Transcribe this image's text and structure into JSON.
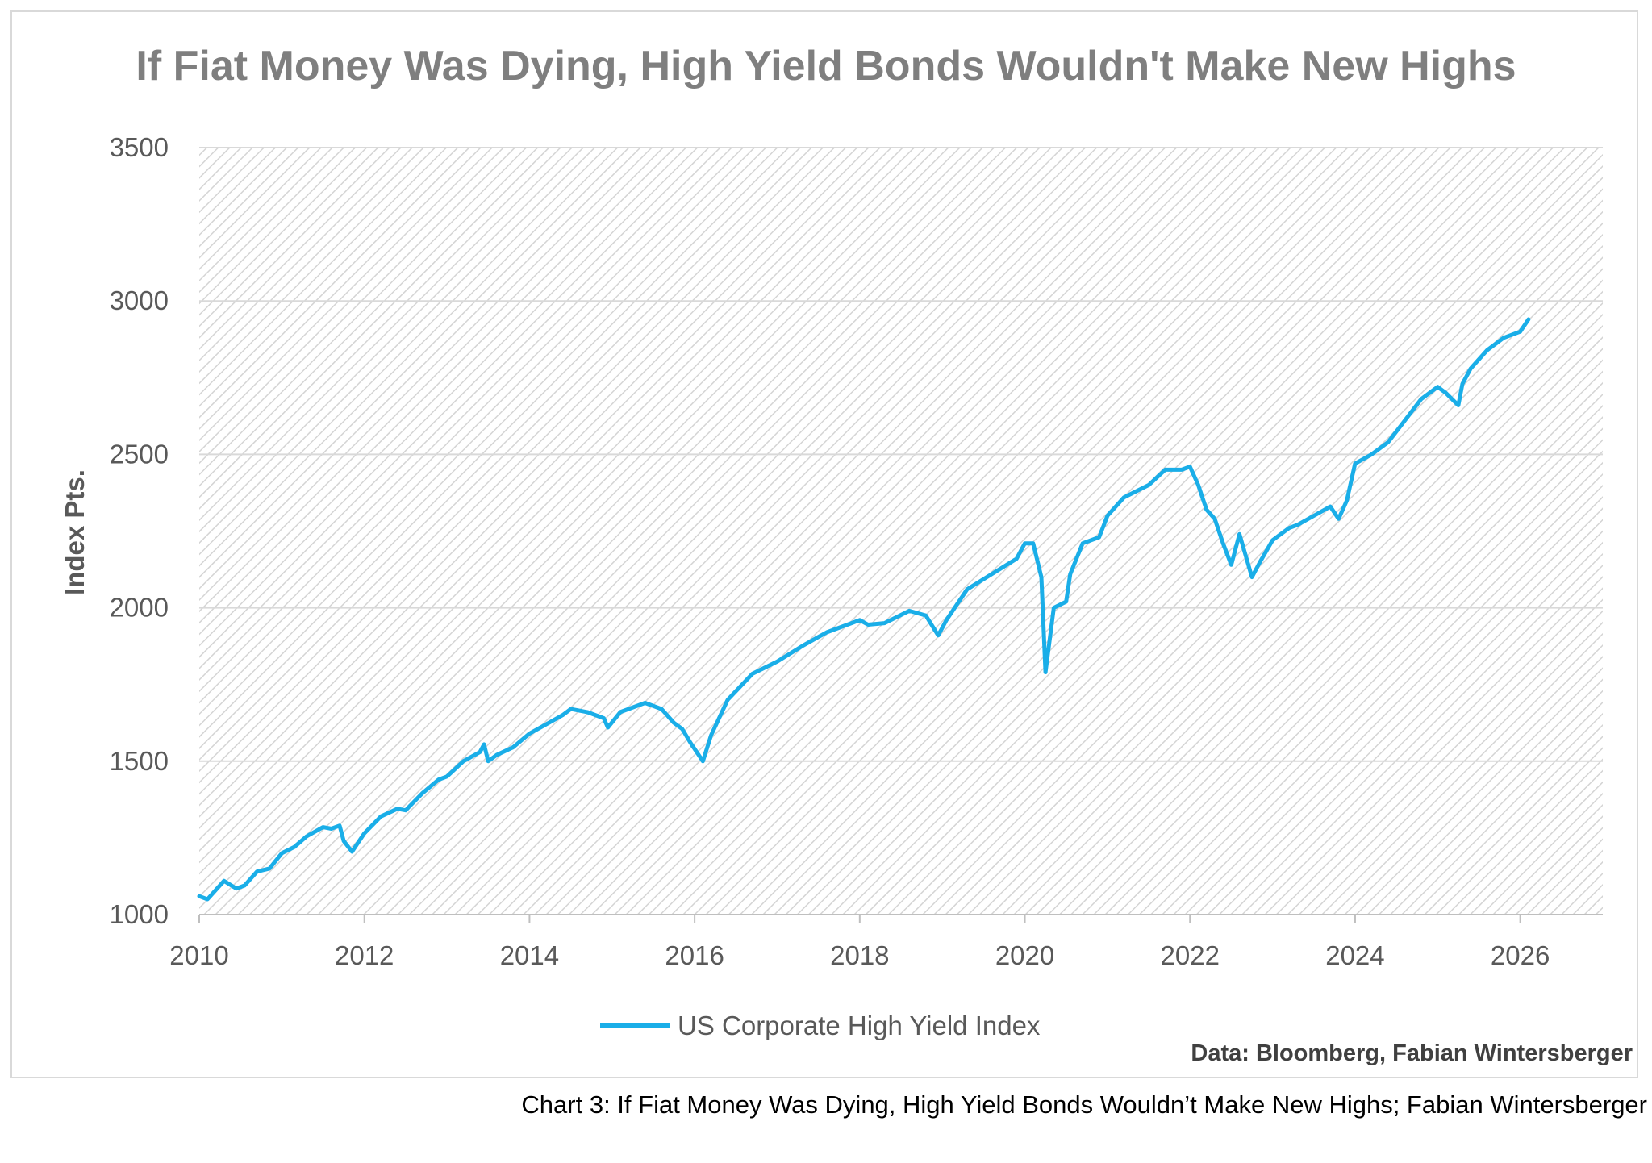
{
  "colors": {
    "series": "#1aaee8",
    "grid": "#d9d9d9",
    "hatch": "#d0d0d0",
    "text": "#595959"
  },
  "chart_data": {
    "type": "line",
    "title": "If Fiat Money Was Dying, High Yield Bonds Wouldn't Make New Highs",
    "ylabel": "Index Pts.",
    "xlabel": "",
    "xlim": [
      2010,
      2027
    ],
    "ylim": [
      1000,
      3500
    ],
    "x_ticks": [
      "2010",
      "2012",
      "2014",
      "2016",
      "2018",
      "2020",
      "2022",
      "2024",
      "2026"
    ],
    "y_ticks": [
      "1000",
      "1500",
      "2000",
      "2500",
      "3000",
      "3500"
    ],
    "grid": true,
    "legend_position": "bottom",
    "series": [
      {
        "name": "US Corporate High Yield Index",
        "x": [
          2010.0,
          2010.1,
          2010.3,
          2010.45,
          2010.55,
          2010.7,
          2010.85,
          2011.0,
          2011.15,
          2011.3,
          2011.5,
          2011.6,
          2011.7,
          2011.75,
          2011.85,
          2012.0,
          2012.2,
          2012.4,
          2012.5,
          2012.7,
          2012.9,
          2013.0,
          2013.2,
          2013.4,
          2013.45,
          2013.5,
          2013.6,
          2013.8,
          2014.0,
          2014.2,
          2014.4,
          2014.5,
          2014.7,
          2014.9,
          2014.95,
          2015.1,
          2015.4,
          2015.6,
          2015.75,
          2015.85,
          2015.95,
          2016.1,
          2016.2,
          2016.4,
          2016.7,
          2017.0,
          2017.3,
          2017.6,
          2017.9,
          2018.0,
          2018.1,
          2018.3,
          2018.6,
          2018.8,
          2018.95,
          2019.05,
          2019.3,
          2019.6,
          2019.9,
          2020.0,
          2020.1,
          2020.2,
          2020.25,
          2020.35,
          2020.5,
          2020.55,
          2020.7,
          2020.9,
          2021.0,
          2021.2,
          2021.5,
          2021.7,
          2021.9,
          2022.0,
          2022.1,
          2022.2,
          2022.3,
          2022.4,
          2022.5,
          2022.6,
          2022.75,
          2022.85,
          2023.0,
          2023.1,
          2023.2,
          2023.3,
          2023.5,
          2023.7,
          2023.8,
          2023.9,
          2024.0,
          2024.2,
          2024.4,
          2024.6,
          2024.8,
          2025.0,
          2025.1,
          2025.25,
          2025.3,
          2025.4,
          2025.6,
          2025.8,
          2026.0,
          2026.1
        ],
        "values": [
          1060,
          1050,
          1110,
          1085,
          1095,
          1140,
          1150,
          1200,
          1220,
          1255,
          1285,
          1280,
          1290,
          1240,
          1205,
          1265,
          1320,
          1345,
          1340,
          1395,
          1440,
          1450,
          1500,
          1530,
          1555,
          1500,
          1520,
          1545,
          1590,
          1620,
          1650,
          1670,
          1660,
          1640,
          1610,
          1660,
          1690,
          1670,
          1625,
          1605,
          1560,
          1500,
          1585,
          1700,
          1785,
          1825,
          1875,
          1920,
          1950,
          1960,
          1945,
          1950,
          1990,
          1975,
          1910,
          1960,
          2060,
          2110,
          2160,
          2210,
          2210,
          2100,
          1790,
          2000,
          2020,
          2110,
          2210,
          2230,
          2300,
          2360,
          2400,
          2450,
          2450,
          2460,
          2400,
          2320,
          2290,
          2210,
          2140,
          2240,
          2100,
          2150,
          2220,
          2240,
          2260,
          2270,
          2300,
          2330,
          2290,
          2350,
          2470,
          2500,
          2540,
          2610,
          2680,
          2720,
          2700,
          2660,
          2730,
          2780,
          2840,
          2880,
          2900,
          2940
        ]
      }
    ]
  },
  "legend": {
    "label": "US Corporate High Yield Index"
  },
  "source_note": "Data: Bloomberg, Fabian Wintersberger",
  "caption": "Chart 3: If Fiat Money Was Dying, High Yield Bonds Wouldn’t Make New Highs; Fabian Wintersberger"
}
